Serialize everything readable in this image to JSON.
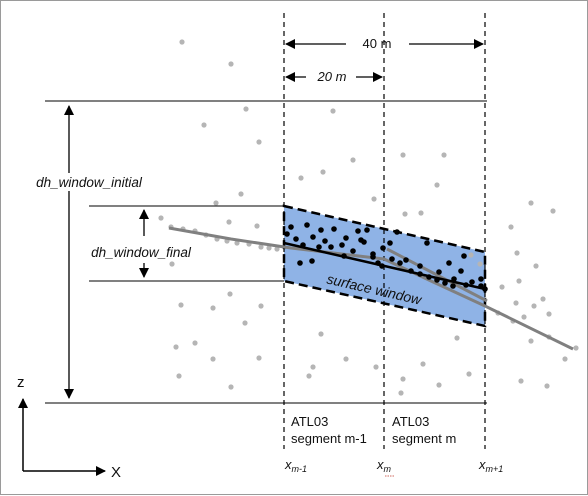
{
  "labels": {
    "width_40": "40 m",
    "width_20": "20 m",
    "dh_initial": "dh_window_initial",
    "dh_final": "dh_window_final",
    "surface_window": "surface window",
    "seg_prev_line1": "ATL03",
    "seg_prev_line2": "segment m-1",
    "seg_cur_line1": "ATL03",
    "seg_cur_line2": "segment m",
    "axis_z": "z",
    "axis_x": "X",
    "x_prev_base": "x",
    "x_prev_sub": "m-1",
    "x_cur_base": "x",
    "x_cur_sub": "m",
    "x_next_base": "x",
    "x_next_sub": "m+1"
  },
  "colors": {
    "window_fill": "#8fb3e6",
    "background_points": "#b5b5b5",
    "surface_points": "#000000",
    "fit_line": "#808080",
    "axis": "#000000"
  }
}
